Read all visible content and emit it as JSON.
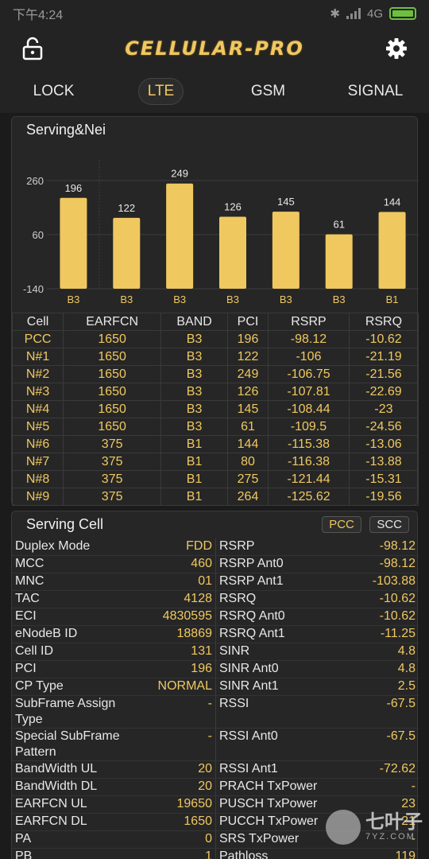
{
  "status": {
    "time": "下午4:24",
    "network": "4G"
  },
  "app": {
    "title": "CELLULAR-PRO"
  },
  "tabs": [
    {
      "label": "LOCK"
    },
    {
      "label": "LTE"
    },
    {
      "label": "GSM"
    },
    {
      "label": "SIGNAL"
    }
  ],
  "neighbors": {
    "title": "Serving&Nei",
    "chart_data": {
      "type": "bar",
      "categories": [
        "B3",
        "B3",
        "B3",
        "B3",
        "B3",
        "B3",
        "B1"
      ],
      "values": [
        196,
        122,
        249,
        126,
        145,
        61,
        144
      ],
      "yticks": [
        260,
        60,
        -140
      ],
      "ylim": [
        -140,
        260
      ]
    },
    "columns": [
      "Cell",
      "EARFCN",
      "BAND",
      "PCI",
      "RSRP",
      "RSRQ"
    ],
    "rows": [
      [
        "PCC",
        "1650",
        "B3",
        "196",
        "-98.12",
        "-10.62"
      ],
      [
        "N#1",
        "1650",
        "B3",
        "122",
        "-106",
        "-21.19"
      ],
      [
        "N#2",
        "1650",
        "B3",
        "249",
        "-106.75",
        "-21.56"
      ],
      [
        "N#3",
        "1650",
        "B3",
        "126",
        "-107.81",
        "-22.69"
      ],
      [
        "N#4",
        "1650",
        "B3",
        "145",
        "-108.44",
        "-23"
      ],
      [
        "N#5",
        "1650",
        "B3",
        "61",
        "-109.5",
        "-24.56"
      ],
      [
        "N#6",
        "375",
        "B1",
        "144",
        "-115.38",
        "-13.06"
      ],
      [
        "N#7",
        "375",
        "B1",
        "80",
        "-116.38",
        "-13.88"
      ],
      [
        "N#8",
        "375",
        "B1",
        "275",
        "-121.44",
        "-15.31"
      ],
      [
        "N#9",
        "375",
        "B1",
        "264",
        "-125.62",
        "-19.56"
      ]
    ]
  },
  "serving": {
    "title": "Serving Cell",
    "pcc_label": "PCC",
    "scc_label": "SCC",
    "left": [
      {
        "k": "Duplex Mode",
        "v": "FDD"
      },
      {
        "k": "MCC",
        "v": "460"
      },
      {
        "k": "MNC",
        "v": "01"
      },
      {
        "k": "TAC",
        "v": "4128"
      },
      {
        "k": "ECI",
        "v": "4830595"
      },
      {
        "k": "eNodeB ID",
        "v": "18869"
      },
      {
        "k": "Cell ID",
        "v": "131"
      },
      {
        "k": "PCI",
        "v": "196"
      },
      {
        "k": "CP Type",
        "v": "NORMAL"
      },
      {
        "k": "SubFrame Assign Type",
        "v": "-"
      },
      {
        "k": "Special SubFrame Pattern",
        "v": "-"
      },
      {
        "k": "BandWidth UL",
        "v": "20"
      },
      {
        "k": "BandWidth DL",
        "v": "20"
      },
      {
        "k": "EARFCN UL",
        "v": "19650"
      },
      {
        "k": "EARFCN DL",
        "v": "1650"
      },
      {
        "k": "PA",
        "v": "0"
      },
      {
        "k": "PB",
        "v": "1"
      }
    ],
    "right": [
      {
        "k": "RSRP",
        "v": "-98.12"
      },
      {
        "k": "RSRP Ant0",
        "v": "-98.12"
      },
      {
        "k": "RSRP Ant1",
        "v": "-103.88"
      },
      {
        "k": "RSRQ",
        "v": "-10.62"
      },
      {
        "k": "RSRQ Ant0",
        "v": "-10.62"
      },
      {
        "k": "RSRQ Ant1",
        "v": "-11.25"
      },
      {
        "k": "SINR",
        "v": "4.8"
      },
      {
        "k": "SINR Ant0",
        "v": "4.8"
      },
      {
        "k": "SINR Ant1",
        "v": "2.5"
      },
      {
        "k": "RSSI",
        "v": "-67.5"
      },
      {
        "k": "RSSI Ant0",
        "v": "-67.5"
      },
      {
        "k": "RSSI Ant1",
        "v": "-72.62"
      },
      {
        "k": "PRACH TxPower",
        "v": "-"
      },
      {
        "k": "PUSCH TxPower",
        "v": "23"
      },
      {
        "k": "PUCCH TxPower",
        "v": "21"
      },
      {
        "k": "SRS  TxPower",
        "v": "-"
      },
      {
        "k": "Pathloss",
        "v": "119"
      }
    ]
  },
  "watermark": {
    "text": "七叶子",
    "sub": "7YZ.COM"
  },
  "colors": {
    "accent": "#f0c860",
    "bg": "#1b1b1b",
    "panel": "#262626"
  }
}
